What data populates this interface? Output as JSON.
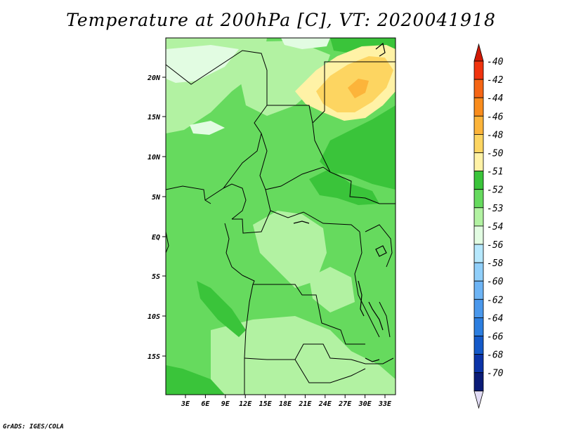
{
  "title": "Temperature at 200hPa [C], VT: 2020041918",
  "credit": "GrADS: IGES/COLA",
  "lat_labels": [
    "20N",
    "15N",
    "10N",
    "5N",
    "EQ",
    "5S",
    "10S",
    "15S"
  ],
  "lon_labels": [
    "3E",
    "6E",
    "9E",
    "12E",
    "15E",
    "18E",
    "21E",
    "24E",
    "27E",
    "30E",
    "33E"
  ],
  "colorbar": {
    "labels": [
      "-40",
      "-42",
      "-44",
      "-46",
      "-48",
      "-50",
      "-51",
      "-52",
      "-53",
      "-54",
      "-56",
      "-58",
      "-60",
      "-62",
      "-64",
      "-66",
      "-68",
      "-70"
    ],
    "colors": [
      "#f0330e",
      "#f56514",
      "#f98c1c",
      "#fcb43a",
      "#fdd561",
      "#fff2a6",
      "#3ac43a",
      "#66da5e",
      "#b2f2a2",
      "#e2fce2",
      "#b6e8fd",
      "#90cffa",
      "#6db4f5",
      "#4a98ec",
      "#2c7ee0",
      "#1459c9",
      "#0b33a8",
      "#0a1b77"
    ],
    "top_color": "#d21905",
    "bottom_color": "#e2dcf5"
  },
  "palette": {
    "background": "#66da5e",
    "warm": "#fdd561",
    "warm_mid": "#fff2a6",
    "light": "#b2f2a2",
    "lighter": "#e2fce2",
    "dark": "#3ac43a",
    "border": "#000000"
  }
}
